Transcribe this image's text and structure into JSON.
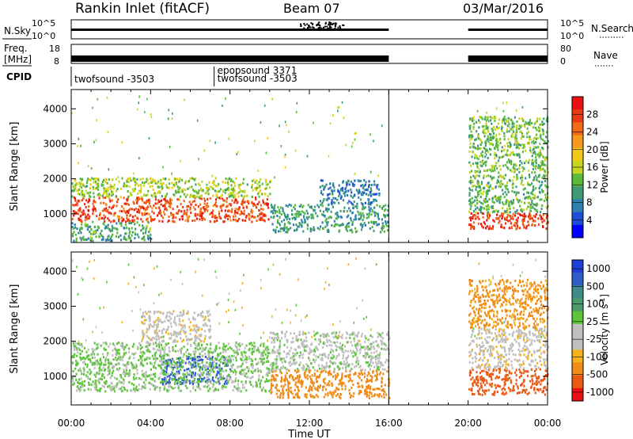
{
  "header": {
    "station": "Rankin Inlet (fitACF)",
    "beam": "Beam 07",
    "date": "03/Mar/2016"
  },
  "strips": {
    "nsky_label": "N.Sky",
    "nsky_ticks": [
      "10^5",
      "10^0"
    ],
    "nsearch_label": "N.Search",
    "freq_label_line1": "Freq.",
    "freq_label_line2": "[MHz]",
    "freq_ticks": [
      "18",
      "8"
    ],
    "nave_ticks": [
      "80",
      "0"
    ],
    "nave_label": "Nave",
    "cpid_label": "CPID",
    "cpid_entries": [
      {
        "start_hr": 0.0,
        "lines": [
          "twofsound -3503"
        ]
      },
      {
        "start_hr": 7.2,
        "lines": [
          "epopsound 3371",
          "twofsound -3503"
        ]
      }
    ]
  },
  "axes": {
    "xlabel": "Time UT",
    "x_ticks": [
      "00:00",
      "04:00",
      "08:00",
      "12:00",
      "16:00",
      "20:00",
      "00:00"
    ],
    "ylabel_power": "Slant Range [km]",
    "ylabel_velocity": "Slant Range [km]",
    "y_ticks": [
      "1000",
      "2000",
      "3000",
      "4000"
    ]
  },
  "colorbars": {
    "power": {
      "label": "Power [dB]",
      "ticks": [
        "4",
        "8",
        "12",
        "16",
        "20",
        "24",
        "28"
      ],
      "colors": [
        "#0000ff",
        "#1f4fd8",
        "#2e7fb0",
        "#3f9a78",
        "#5aba3a",
        "#c6d620",
        "#f2c81a",
        "#f59a1c",
        "#f06a18",
        "#ea3a14",
        "#e81010"
      ]
    },
    "velocity": {
      "label": "Velocity [m s^-1]",
      "ticks": [
        "1000",
        "500",
        "100",
        "25",
        "-25",
        "-100",
        "-500",
        "-1000"
      ],
      "colors": [
        "#1f3fd6",
        "#2e5fc8",
        "#3e8d8a",
        "#4a9a6a",
        "#5ec53a",
        "#bfbfbf",
        "#bfbfbf",
        "#f5b21c",
        "#f08a18",
        "#ea5a14",
        "#e81010"
      ]
    }
  },
  "chart_data": [
    {
      "type": "heatmap",
      "title": "Rankin Inlet (fitACF) Beam 07 03/Mar/2016",
      "variable": "Power [dB]",
      "xlabel": "Time UT",
      "ylabel": "Slant Range [km]",
      "xlim_hours": [
        0,
        24
      ],
      "ylim_km": [
        180,
        4550
      ],
      "color_range": [
        0,
        30
      ],
      "data_gap_hours": [
        16.0,
        20.0
      ],
      "regions": [
        {
          "t": [
            0.0,
            10.0
          ],
          "r": [
            800,
            1500
          ],
          "value": 26
        },
        {
          "t": [
            0.0,
            10.0
          ],
          "r": [
            1500,
            2050
          ],
          "value": 14
        },
        {
          "t": [
            0.0,
            4.0
          ],
          "r": [
            250,
            800
          ],
          "value": 10
        },
        {
          "t": [
            10.0,
            16.0
          ],
          "r": [
            500,
            1300
          ],
          "value": 9
        },
        {
          "t": [
            12.5,
            15.5
          ],
          "r": [
            1300,
            2000
          ],
          "value": 6
        },
        {
          "t": [
            20.0,
            24.0
          ],
          "r": [
            600,
            1050
          ],
          "value": 27
        },
        {
          "t": [
            20.0,
            24.0
          ],
          "r": [
            1050,
            2150
          ],
          "value": 11
        },
        {
          "t": [
            20.0,
            24.0
          ],
          "r": [
            2200,
            3800
          ],
          "value": 12
        }
      ]
    },
    {
      "type": "heatmap",
      "variable": "Velocity [m s^-1]",
      "xlabel": "Time UT",
      "ylabel": "Slant Range [km]",
      "xlim_hours": [
        0,
        24
      ],
      "ylim_km": [
        180,
        4550
      ],
      "color_range": [
        -1000,
        1000
      ],
      "data_gap_hours": [
        16.0,
        20.0
      ],
      "regions": [
        {
          "t": [
            4.5,
            8.0
          ],
          "r": [
            800,
            1600
          ],
          "value": 900
        },
        {
          "t": [
            0.0,
            10.0
          ],
          "r": [
            600,
            2000
          ],
          "value": 60
        },
        {
          "t": [
            3.5,
            7.0
          ],
          "r": [
            2000,
            2900
          ],
          "value": 0
        },
        {
          "t": [
            10.0,
            16.0
          ],
          "r": [
            400,
            1200
          ],
          "value": -150
        },
        {
          "t": [
            10.0,
            16.0
          ],
          "r": [
            1200,
            2300
          ],
          "value": 30
        },
        {
          "t": [
            20.0,
            24.0
          ],
          "r": [
            500,
            1250
          ],
          "value": -300
        },
        {
          "t": [
            20.0,
            24.0
          ],
          "r": [
            1250,
            2400
          ],
          "value": 0
        },
        {
          "t": [
            20.0,
            24.0
          ],
          "r": [
            2400,
            3800
          ],
          "value": -120
        }
      ]
    }
  ]
}
